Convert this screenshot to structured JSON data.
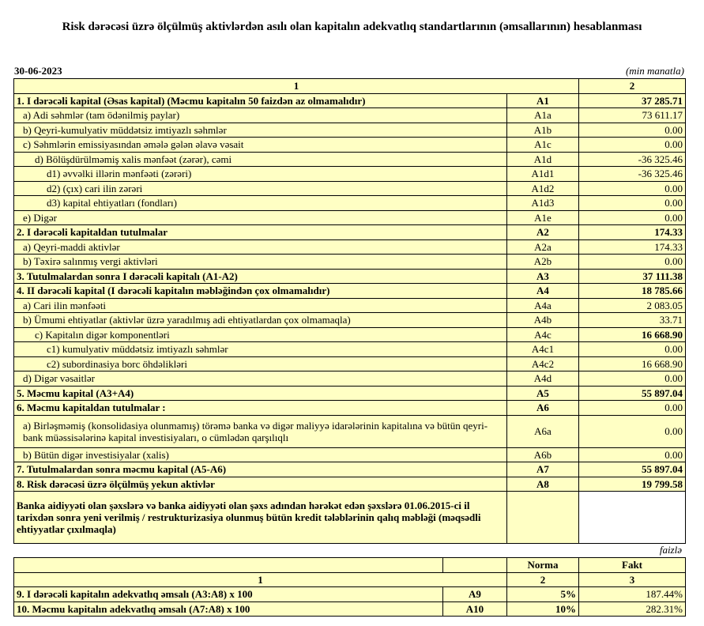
{
  "header": {
    "title": "Risk dərəcəsi üzrə ölçülmüş aktivlərdən asılı olan kapitalın adekvatlıq standartlarının (əmsallarının) hesablanması",
    "date": "30-06-2023",
    "unit": "(min manatla)"
  },
  "table1": {
    "header": [
      "1",
      "2"
    ],
    "rows": [
      [
        "1. I dərəcəli kapital (Əsas kapital) (Məcmu kapitalın 50 faizdən  az olmamalıdır)",
        "A1",
        "37 285.71"
      ],
      [
        "a) Adi səhmlər (tam ödənilmiş paylar)",
        "A1a",
        "73 611.17"
      ],
      [
        "b) Qeyri-kumulyativ müddətsiz imtiyazlı səhmlər",
        "A1b",
        "0.00"
      ],
      [
        "c) Səhmlərin emissiyasından əmələ gələn  əlavə vəsait",
        "A1c",
        "0.00"
      ],
      [
        "d)   Bölüşdürülməmiş xalis mənfəət (zərər), cəmi",
        "A1d",
        "-36 325.46"
      ],
      [
        "d1) əvvəlki illərin mənfəəti (zərəri)",
        "A1d1",
        "-36 325.46"
      ],
      [
        "d2) (çıx) cari ilin zərəri",
        "A1d2",
        "0.00"
      ],
      [
        "d3) kapital ehtiyatları (fondları)",
        "A1d3",
        "0.00"
      ],
      [
        "e) Digər",
        "A1e",
        "0.00"
      ],
      [
        "2. I dərəcəli kapitaldan  tutulmalar",
        "A2",
        "174.33"
      ],
      [
        "a) Qeyri-maddi aktivlər",
        "A2a",
        "174.33"
      ],
      [
        "b) Təxirə salınmış vergi aktivləri",
        "A2b",
        "0.00"
      ],
      [
        "3. Tutulmalardan  sonra I dərəcəli kapitalı (A1-A2)",
        "A3",
        "37 111.38"
      ],
      [
        "4. II dərəcəli  kapital (I dərəcəli  kapitalın  məbləğindən çox olmamalıdır)",
        "A4",
        "18 785.66"
      ],
      [
        "a) Cari ilin mənfəəti",
        "A4a",
        "2 083.05"
      ],
      [
        "b) Ümumi ehtiyatlar (aktivlər üzrə yaradılmış adi ehtiyatlardan çox olmamaqla)",
        "A4b",
        "33.71"
      ],
      [
        "c)  Kapitalın digər komponentləri",
        "A4c",
        "16 668.90"
      ],
      [
        "c1) kumulyativ müddətsiz imtiyazlı səhmlər",
        "A4c1",
        "0.00"
      ],
      [
        "c2) subordinasiya borc öhdəlikləri",
        "A4c2",
        "16 668.90"
      ],
      [
        "d) Digər vəsaitlər",
        "A4d",
        "0.00"
      ],
      [
        "5. Məcmu kapital (A3+A4)",
        "A5",
        "55 897.04"
      ],
      [
        "6. Məcmu kapitaldan tutulmalar :",
        "A6",
        "0.00"
      ],
      [
        "a)   Birləşməmiş (konsolidasiya olunmamış) törəmə banka və digər maliyyə idarələrinin kapitalına və bütün qeyri-bank müəssisələrinə kapital investisiyaları, o cümlədən qarşılıqlı",
        "A6a",
        "0.00"
      ],
      [
        "b) Bütün digər investisiyalar (xalis)",
        "A6b",
        "0.00"
      ],
      [
        "7. Tutulmalardan  sonra məcmu kapital (A5-A6)",
        "A7",
        "55 897.04"
      ],
      [
        "8. Risk dərəcəsi üzrə ölçülmüş yekun aktivlər",
        "A8",
        "19 799.58"
      ]
    ],
    "note": "Banka aidiyyəti olan şəxslərə və banka aidiyyəti olan şəxs adından hərəkət edən şəxslərə 01.06.2015-ci il tarixdən sonra yeni verilmiş / restrukturizasiya olunmuş bütün kredit tələblərinin qalıq məbləği (məqsədli ehtiyyatlar çıxılmaqla)"
  },
  "table2": {
    "unit": "faizlə",
    "header": [
      "Norma",
      "Fakt"
    ],
    "column_numbers": [
      "1",
      "2",
      "3"
    ],
    "rows": [
      [
        "9. I dərəcəli  kapitalın  adekvatlıq  əmsalı (A3:A8) x 100",
        "A9",
        "5%",
        "187.44%"
      ],
      [
        "10. Məcmu kapitalın  adekvatlıq  əmsalı (A7:A8) x 100",
        "A10",
        "10%",
        "282.31%"
      ]
    ]
  }
}
